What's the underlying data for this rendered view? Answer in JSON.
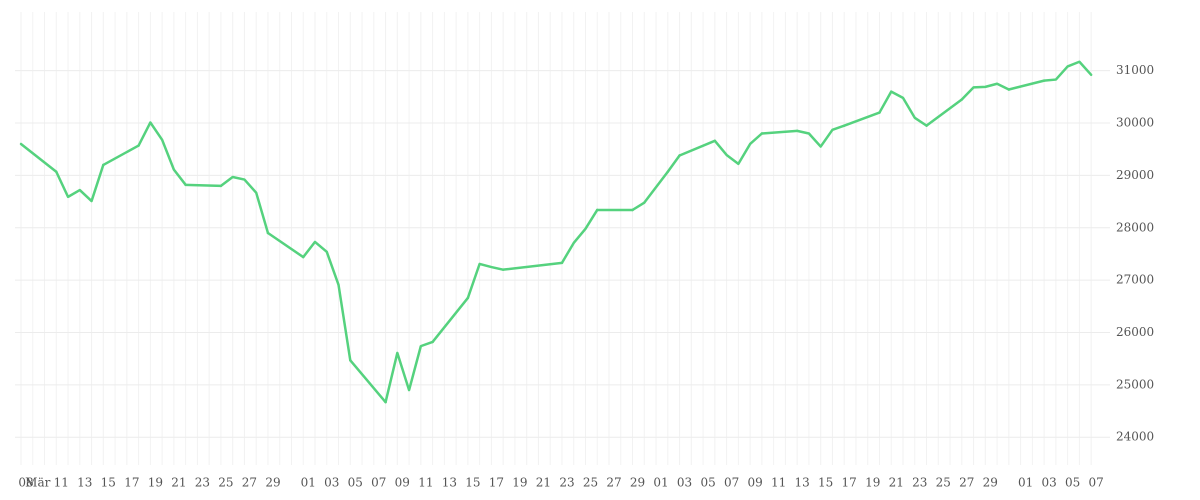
{
  "chart_data": {
    "type": "line",
    "categories": [
      "08",
      "Mär",
      null,
      "11",
      null,
      "13",
      null,
      "15",
      null,
      "17",
      null,
      "19",
      null,
      "21",
      null,
      "23",
      null,
      "25",
      null,
      "27",
      null,
      "29",
      null,
      null,
      "01",
      null,
      "03",
      null,
      "05",
      null,
      "07",
      null,
      "09",
      null,
      "11",
      null,
      "13",
      null,
      "15",
      null,
      "17",
      null,
      "19",
      null,
      "21",
      null,
      "23",
      null,
      "25",
      null,
      "27",
      null,
      "29",
      null,
      "01",
      null,
      "03",
      null,
      "05",
      null,
      "07",
      null,
      "09",
      null,
      "11",
      null,
      "13",
      null,
      "15",
      null,
      "17",
      null,
      "19",
      null,
      "21",
      null,
      "23",
      null,
      "25",
      null,
      "27",
      null,
      "29",
      null,
      null,
      "01",
      null,
      "03",
      null,
      "05",
      null,
      "07"
    ],
    "values": [
      29600,
      null,
      null,
      29070,
      28590,
      28720,
      28510,
      29200,
      null,
      null,
      29570,
      30010,
      29680,
      29110,
      28820,
      null,
      null,
      28800,
      28970,
      28920,
      28670,
      27900,
      null,
      null,
      27440,
      27730,
      27540,
      26910,
      25470,
      null,
      null,
      24670,
      25610,
      24900,
      25740,
      25820,
      null,
      null,
      26660,
      27310,
      27250,
      27200,
      null,
      null,
      null,
      null,
      27330,
      27710,
      27980,
      28340,
      null,
      null,
      28340,
      28480,
      null,
      29070,
      29380,
      null,
      null,
      29660,
      29390,
      29220,
      29600,
      29800,
      null,
      null,
      29850,
      29800,
      29550,
      29870,
      29950,
      null,
      null,
      30200,
      30600,
      30480,
      30100,
      29950,
      null,
      null,
      30450,
      30680,
      30690,
      30750,
      30640,
      null,
      null,
      30810,
      30830,
      31080,
      31170,
      30920
    ],
    "color": "#55d27e",
    "ylim": [
      23470,
      32120
    ],
    "yticks": [
      24000,
      25000,
      26000,
      27000,
      28000,
      29000,
      30000,
      31000
    ],
    "grid": true
  }
}
